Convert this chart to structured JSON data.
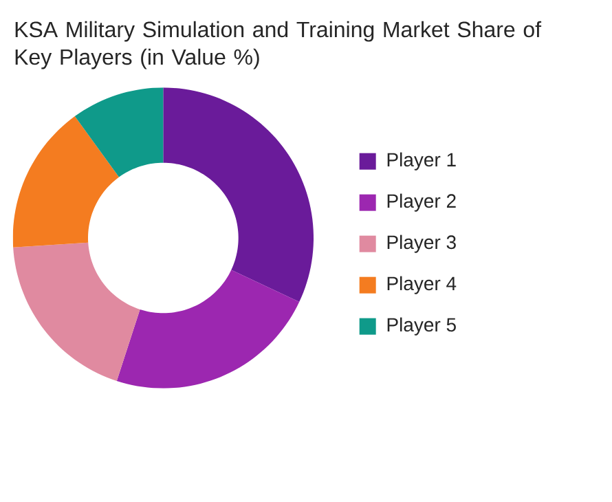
{
  "chart_data": {
    "type": "donut",
    "title": "KSA Military Simulation and Training Market Share of Key Players (in Value %)",
    "categories": [
      "Player 1",
      "Player 2",
      "Player 3",
      "Player 4",
      "Player 5"
    ],
    "values": [
      32,
      23,
      19,
      16,
      10
    ],
    "colors": [
      "#6a1b9a",
      "#9c27b0",
      "#e08aa0",
      "#f47c20",
      "#0f9a8a"
    ],
    "legend": "right"
  }
}
